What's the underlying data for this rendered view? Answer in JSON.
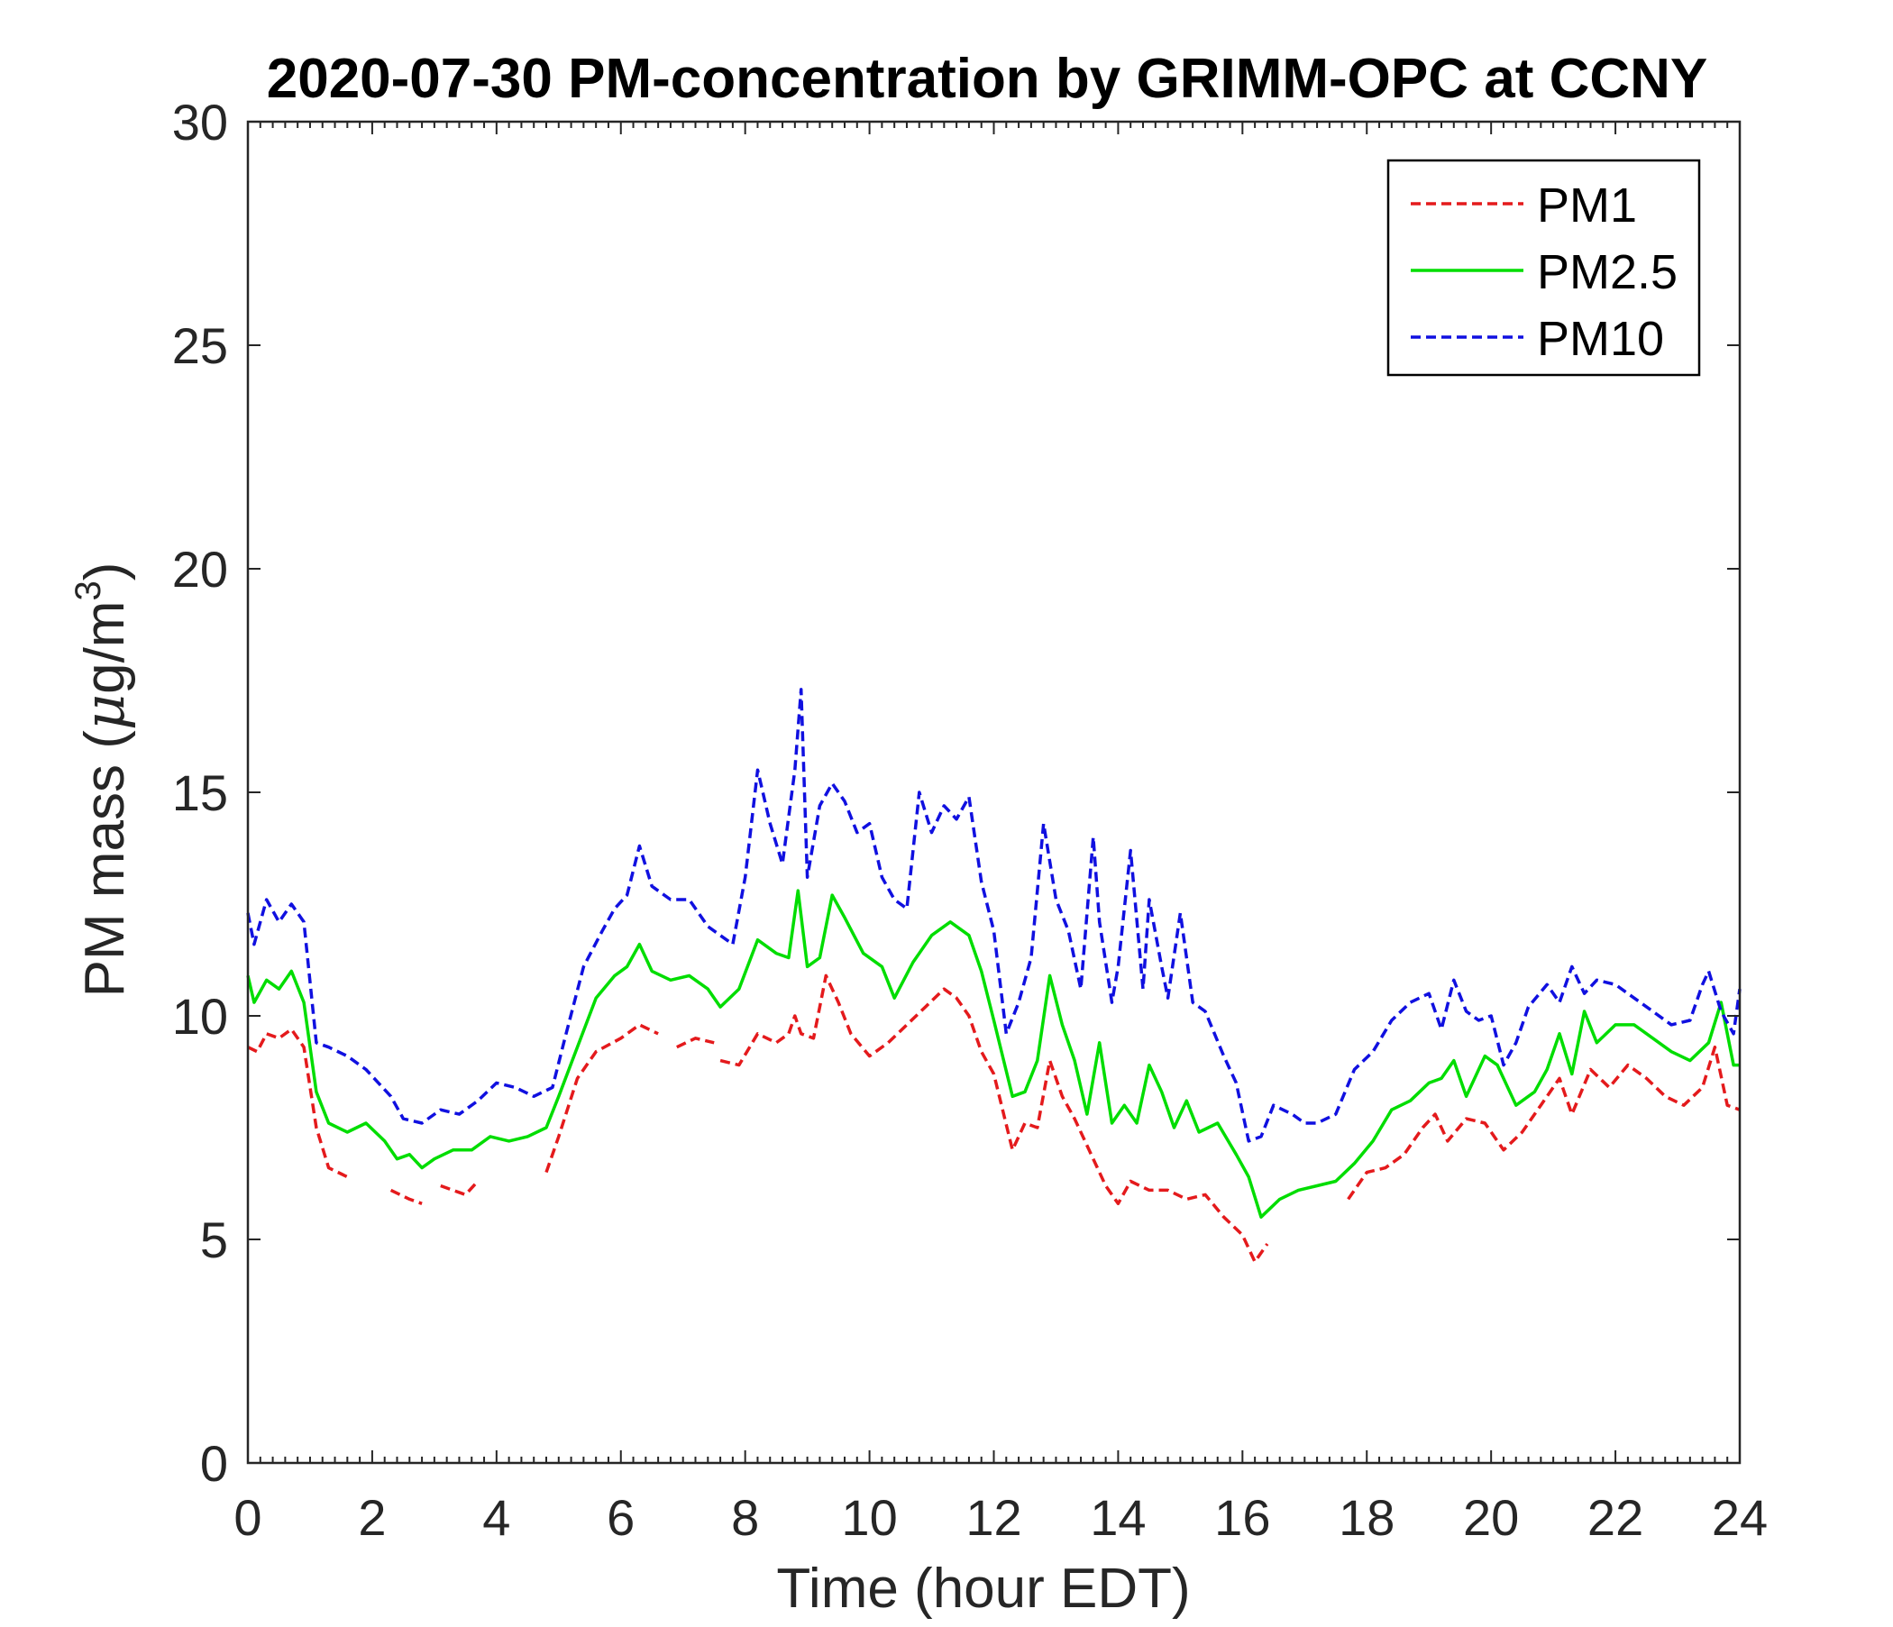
{
  "chart_data": {
    "type": "line",
    "title": "2020-07-30 PM-concentration by GRIMM-OPC at CCNY",
    "xlabel": "Time (hour EDT)",
    "ylabel_prefix": "PM mass (",
    "ylabel_mu": "μ",
    "ylabel_unit": "g/m",
    "ylabel_sup": "3",
    "ylabel_suffix": ")",
    "xlim": [
      0,
      24
    ],
    "ylim": [
      0,
      30
    ],
    "xticks": [
      0,
      2,
      4,
      6,
      8,
      10,
      12,
      14,
      16,
      18,
      20,
      22,
      24
    ],
    "yticks": [
      0,
      5,
      10,
      15,
      20,
      25,
      30
    ],
    "legend_position": "top-right",
    "series": [
      {
        "name": "PM1",
        "color": "#e41a1c",
        "dash": "dashed",
        "x": [
          0,
          0.15,
          0.3,
          0.5,
          0.7,
          0.9,
          1.1,
          1.3,
          1.6,
          null,
          2.3,
          2.6,
          2.8,
          null,
          3.1,
          3.5,
          3.7,
          null,
          4.8,
          5.0,
          5.3,
          5.6,
          6.0,
          6.3,
          6.6,
          null,
          6.9,
          7.2,
          7.5,
          null,
          7.6,
          7.9,
          8.2,
          8.5,
          8.7,
          8.8,
          8.9,
          9.1,
          9.3,
          9.5,
          9.7,
          10.0,
          10.3,
          10.6,
          10.9,
          11.2,
          11.4,
          11.6,
          11.8,
          12.0,
          12.3,
          12.5,
          12.7,
          12.9,
          13.1,
          13.3,
          13.6,
          13.8,
          14.0,
          14.2,
          14.5,
          14.8,
          15.1,
          15.4,
          15.7,
          16.0,
          16.2,
          16.4,
          null,
          17.7,
          18.0,
          18.3,
          18.6,
          18.9,
          19.1,
          19.3,
          19.6,
          19.9,
          20.2,
          20.5,
          20.8,
          21.1,
          21.3,
          21.6,
          21.9,
          22.2,
          22.5,
          22.8,
          23.1,
          23.4,
          23.6,
          23.8,
          24.0
        ],
        "y": [
          9.3,
          9.2,
          9.6,
          9.5,
          9.7,
          9.3,
          7.5,
          6.6,
          6.4,
          null,
          6.1,
          5.9,
          5.8,
          null,
          6.2,
          6.0,
          6.3,
          null,
          6.5,
          7.3,
          8.6,
          9.2,
          9.5,
          9.8,
          9.6,
          null,
          9.3,
          9.5,
          9.4,
          null,
          9.0,
          8.9,
          9.6,
          9.4,
          9.6,
          10.0,
          9.6,
          9.5,
          10.9,
          10.3,
          9.6,
          9.1,
          9.4,
          9.8,
          10.2,
          10.6,
          10.4,
          10.0,
          9.2,
          8.7,
          7.0,
          7.6,
          7.5,
          9.0,
          8.2,
          7.7,
          6.8,
          6.2,
          5.8,
          6.3,
          6.1,
          6.1,
          5.9,
          6.0,
          5.5,
          5.1,
          4.5,
          4.9,
          null,
          5.9,
          6.5,
          6.6,
          6.9,
          7.5,
          7.8,
          7.2,
          7.7,
          7.6,
          7.0,
          7.4,
          8.0,
          8.6,
          7.8,
          8.8,
          8.4,
          8.9,
          8.6,
          8.2,
          8.0,
          8.4,
          9.3,
          8.0,
          7.9
        ]
      },
      {
        "name": "PM2.5",
        "color": "#00dd00",
        "dash": "solid",
        "x": [
          0,
          0.1,
          0.3,
          0.5,
          0.7,
          0.9,
          1.1,
          1.3,
          1.6,
          1.9,
          2.2,
          2.4,
          2.6,
          2.8,
          3.0,
          3.3,
          3.6,
          3.9,
          4.2,
          4.5,
          4.8,
          5.0,
          5.3,
          5.6,
          5.9,
          6.1,
          6.3,
          6.5,
          6.8,
          7.1,
          7.4,
          7.6,
          7.9,
          8.2,
          8.5,
          8.7,
          8.85,
          9.0,
          9.2,
          9.4,
          9.6,
          9.9,
          10.2,
          10.4,
          10.7,
          11.0,
          11.3,
          11.6,
          11.8,
          12.0,
          12.3,
          12.5,
          12.7,
          12.9,
          13.1,
          13.3,
          13.5,
          13.7,
          13.9,
          14.1,
          14.3,
          14.5,
          14.7,
          14.9,
          15.1,
          15.3,
          15.6,
          15.9,
          16.1,
          16.3,
          16.6,
          16.9,
          17.2,
          17.5,
          17.8,
          18.1,
          18.4,
          18.7,
          19.0,
          19.2,
          19.4,
          19.6,
          19.9,
          20.1,
          20.4,
          20.7,
          20.9,
          21.1,
          21.3,
          21.5,
          21.7,
          22.0,
          22.3,
          22.6,
          22.9,
          23.2,
          23.5,
          23.7,
          23.9,
          24.0
        ],
        "y": [
          10.9,
          10.3,
          10.8,
          10.6,
          11.0,
          10.3,
          8.3,
          7.6,
          7.4,
          7.6,
          7.2,
          6.8,
          6.9,
          6.6,
          6.8,
          7.0,
          7.0,
          7.3,
          7.2,
          7.3,
          7.5,
          8.2,
          9.3,
          10.4,
          10.9,
          11.1,
          11.6,
          11.0,
          10.8,
          10.9,
          10.6,
          10.2,
          10.6,
          11.7,
          11.4,
          11.3,
          12.8,
          11.1,
          11.3,
          12.7,
          12.2,
          11.4,
          11.1,
          10.4,
          11.2,
          11.8,
          12.1,
          11.8,
          11.0,
          9.9,
          8.2,
          8.3,
          9.0,
          10.9,
          9.8,
          9.0,
          7.8,
          9.4,
          7.6,
          8.0,
          7.6,
          8.9,
          8.3,
          7.5,
          8.1,
          7.4,
          7.6,
          6.9,
          6.4,
          5.5,
          5.9,
          6.1,
          6.2,
          6.3,
          6.7,
          7.2,
          7.9,
          8.1,
          8.5,
          8.6,
          9.0,
          8.2,
          9.1,
          8.9,
          8.0,
          8.3,
          8.8,
          9.6,
          8.7,
          10.1,
          9.4,
          9.8,
          9.8,
          9.5,
          9.2,
          9.0,
          9.4,
          10.3,
          8.9,
          8.9
        ]
      },
      {
        "name": "PM10",
        "color": "#1010e0",
        "dash": "dashed",
        "x": [
          0,
          0.1,
          0.3,
          0.5,
          0.7,
          0.9,
          1.1,
          1.3,
          1.6,
          1.9,
          2.1,
          2.3,
          2.5,
          2.8,
          3.1,
          3.4,
          3.7,
          4.0,
          4.3,
          4.6,
          4.9,
          5.1,
          5.4,
          5.7,
          5.9,
          6.1,
          6.3,
          6.5,
          6.8,
          7.1,
          7.4,
          7.6,
          7.8,
          8.0,
          8.2,
          8.4,
          8.6,
          8.8,
          8.9,
          9.0,
          9.2,
          9.4,
          9.6,
          9.8,
          10.0,
          10.2,
          10.4,
          10.6,
          10.8,
          11.0,
          11.2,
          11.4,
          11.6,
          11.8,
          12.0,
          12.2,
          12.4,
          12.6,
          12.8,
          13.0,
          13.2,
          13.4,
          13.6,
          13.7,
          13.9,
          14.0,
          14.2,
          14.4,
          14.5,
          14.7,
          14.8,
          15.0,
          15.2,
          15.4,
          15.7,
          15.9,
          16.1,
          16.3,
          16.5,
          16.8,
          17.0,
          17.2,
          17.5,
          17.8,
          18.1,
          18.4,
          18.7,
          19.0,
          19.2,
          19.4,
          19.6,
          19.8,
          20.0,
          20.2,
          20.4,
          20.6,
          20.9,
          21.1,
          21.3,
          21.5,
          21.7,
          22.0,
          22.3,
          22.6,
          22.9,
          23.2,
          23.4,
          23.5,
          23.7,
          23.9,
          24.0
        ],
        "y": [
          12.3,
          11.6,
          12.6,
          12.1,
          12.5,
          12.1,
          9.4,
          9.3,
          9.1,
          8.8,
          8.5,
          8.2,
          7.7,
          7.6,
          7.9,
          7.8,
          8.1,
          8.5,
          8.4,
          8.2,
          8.4,
          9.5,
          11.1,
          11.9,
          12.4,
          12.7,
          13.8,
          12.9,
          12.6,
          12.6,
          12.0,
          11.8,
          11.6,
          13.1,
          15.5,
          14.3,
          13.4,
          15.5,
          17.3,
          13.1,
          14.7,
          15.2,
          14.8,
          14.1,
          14.3,
          13.1,
          12.6,
          12.4,
          15.0,
          14.1,
          14.7,
          14.4,
          14.9,
          13.0,
          11.9,
          9.6,
          10.3,
          11.3,
          14.3,
          12.6,
          11.9,
          10.6,
          14.0,
          12.1,
          10.3,
          11.1,
          13.7,
          10.6,
          12.6,
          11.1,
          10.4,
          12.3,
          10.3,
          10.1,
          9.1,
          8.5,
          7.2,
          7.3,
          8.0,
          7.8,
          7.6,
          7.6,
          7.8,
          8.8,
          9.2,
          9.9,
          10.3,
          10.5,
          9.7,
          10.8,
          10.1,
          9.9,
          10.0,
          8.9,
          9.4,
          10.2,
          10.7,
          10.3,
          11.1,
          10.5,
          10.8,
          10.7,
          10.4,
          10.1,
          9.8,
          9.9,
          10.7,
          11.0,
          10.1,
          9.6,
          10.6
        ]
      }
    ]
  }
}
